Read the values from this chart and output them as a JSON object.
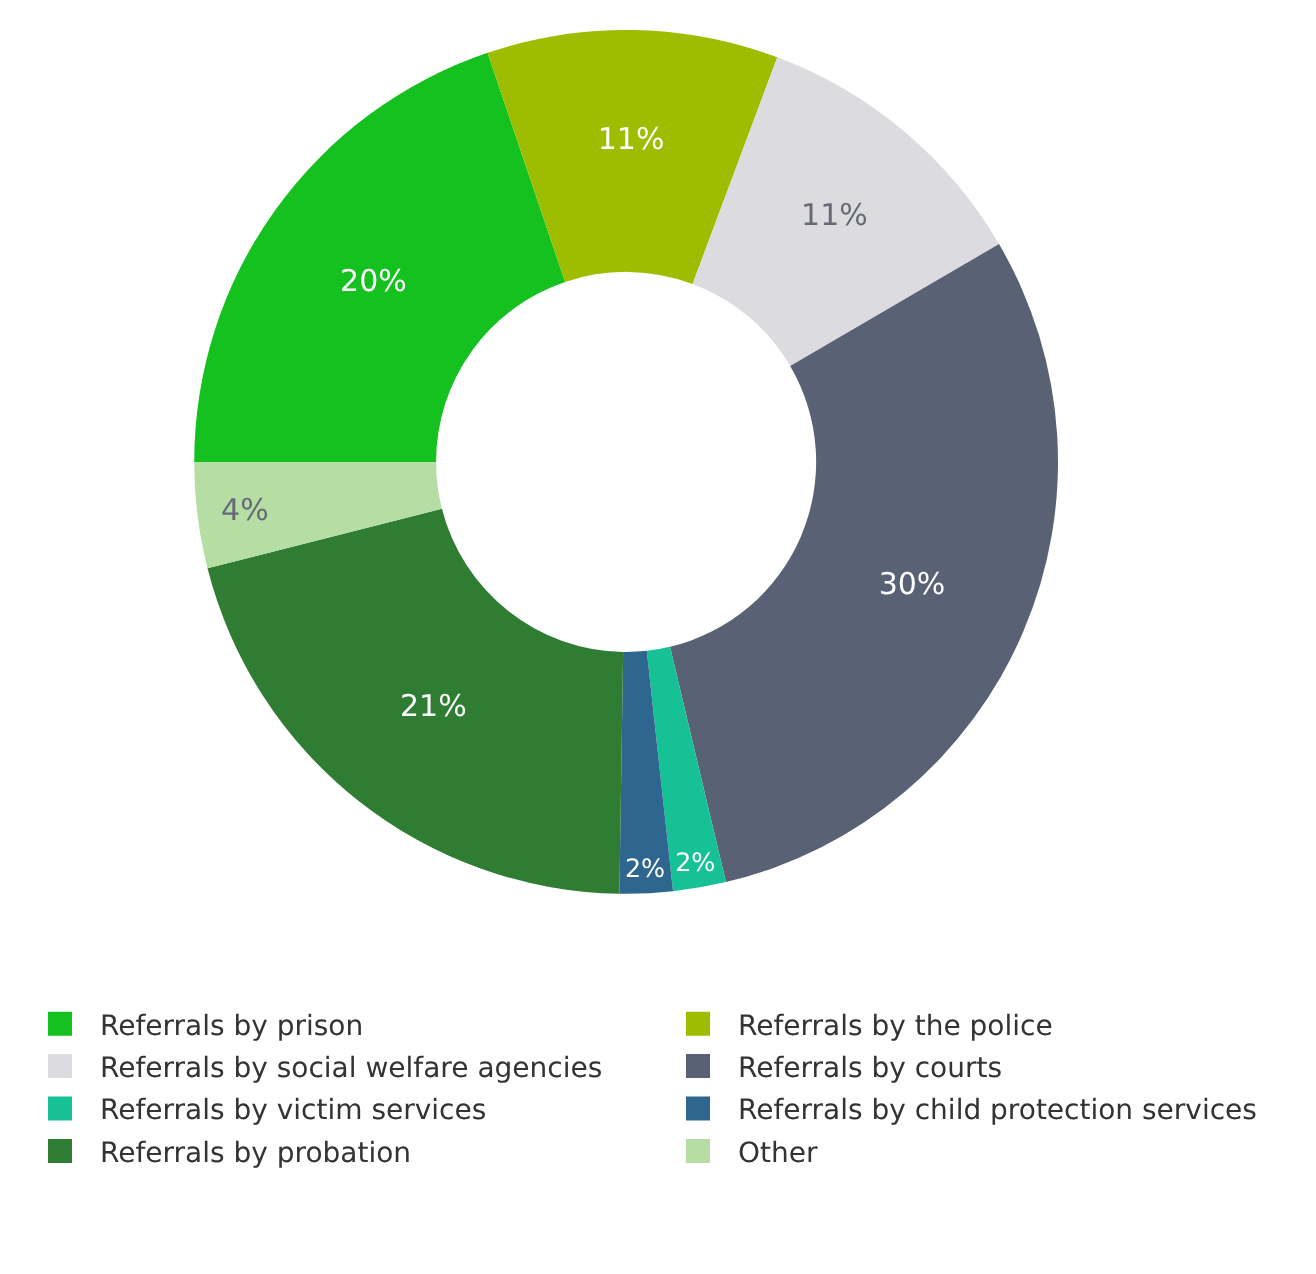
{
  "chart_data": {
    "type": "donut",
    "categories": [
      "Referrals by prison",
      "Referrals by the police",
      "Referrals by social welfare agencies",
      "Referrals by courts",
      "Referrals by victim services",
      "Referrals by child protection services",
      "Referrals by probation",
      "Other"
    ],
    "values": [
      20,
      11,
      11,
      30,
      2,
      2,
      21,
      4
    ],
    "colors": [
      "#14c11f",
      "#9ebc00",
      "#dcdce0",
      "#596275",
      "#16c196",
      "#2f6690",
      "#2e7d32",
      "#b5dda4"
    ],
    "value_labels": [
      "20%",
      "11%",
      "11%",
      "30%",
      "2%",
      "2%",
      "21%",
      "4%"
    ],
    "legend": "bottom"
  }
}
